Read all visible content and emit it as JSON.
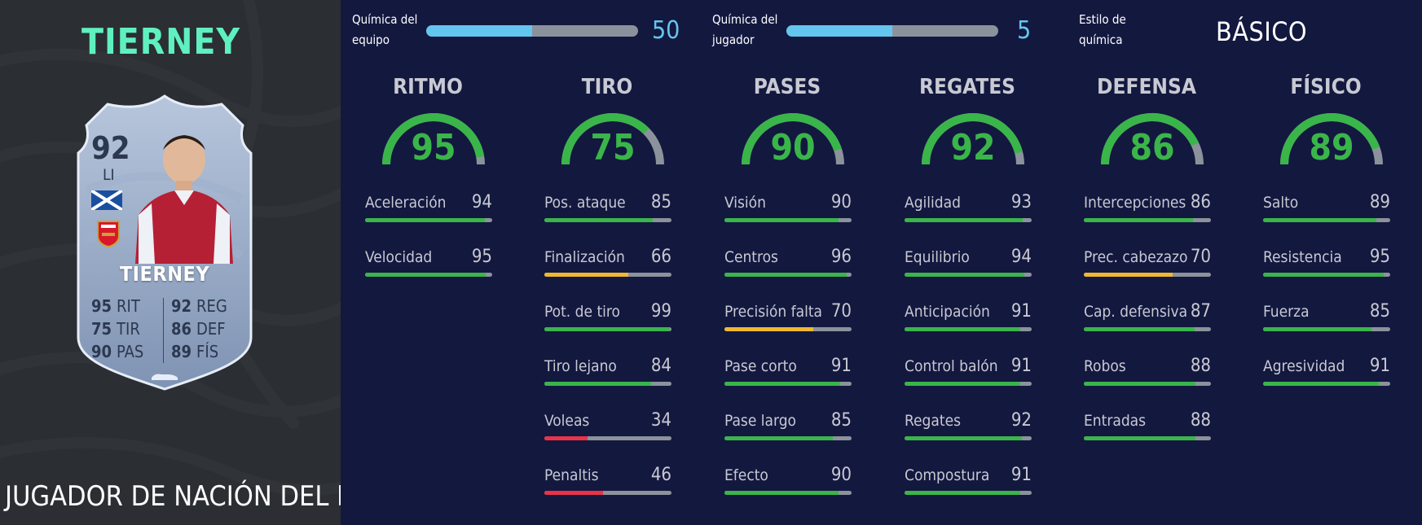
{
  "player": {
    "title_name": "TIERNEY",
    "card_type": "JUGADOR DE NACIÓN DEL FOF",
    "card": {
      "rating": "92",
      "position": "LI",
      "name": "TIERNEY",
      "flag_icon": "scotland-flag-icon",
      "club_icon": "arsenal-crest-icon",
      "stats": [
        {
          "value": "95",
          "label": "RIT"
        },
        {
          "value": "75",
          "label": "TIR"
        },
        {
          "value": "90",
          "label": "PAS"
        },
        {
          "value": "92",
          "label": "REG"
        },
        {
          "value": "86",
          "label": "DEF"
        },
        {
          "value": "89",
          "label": "FÍS"
        }
      ]
    }
  },
  "chemistry": {
    "team": {
      "label_line1": "Química del",
      "label_line2": "equipo",
      "value": "50",
      "fill": 0.5
    },
    "player": {
      "label_line1": "Química del",
      "label_line2": "jugador",
      "value": "5",
      "fill": 0.5
    },
    "style": {
      "label_line1": "Estilo de",
      "label_line2": "química",
      "value": "BÁSICO"
    }
  },
  "colors": {
    "green": "#3ab54a",
    "yellow": "#f0b730",
    "red": "#e8334a",
    "track": "#8c929b",
    "accent_blue": "#64c6ef",
    "title_mint": "#5ff0bf"
  },
  "columns": [
    {
      "title": "RITMO",
      "value": 95,
      "attributes": [
        {
          "name": "Aceleración",
          "value": 94
        },
        {
          "name": "Velocidad",
          "value": 95
        }
      ]
    },
    {
      "title": "TIRO",
      "value": 75,
      "attributes": [
        {
          "name": "Pos. ataque",
          "value": 85
        },
        {
          "name": "Finalización",
          "value": 66
        },
        {
          "name": "Pot. de tiro",
          "value": 99
        },
        {
          "name": "Tiro lejano",
          "value": 84
        },
        {
          "name": "Voleas",
          "value": 34
        },
        {
          "name": "Penaltis",
          "value": 46
        }
      ]
    },
    {
      "title": "PASES",
      "value": 90,
      "attributes": [
        {
          "name": "Visión",
          "value": 90
        },
        {
          "name": "Centros",
          "value": 96
        },
        {
          "name": "Precisión falta",
          "value": 70
        },
        {
          "name": "Pase corto",
          "value": 91
        },
        {
          "name": "Pase largo",
          "value": 85
        },
        {
          "name": "Efecto",
          "value": 90
        }
      ]
    },
    {
      "title": "REGATES",
      "value": 92,
      "attributes": [
        {
          "name": "Agilidad",
          "value": 93
        },
        {
          "name": "Equilibrio",
          "value": 94
        },
        {
          "name": "Anticipación",
          "value": 91
        },
        {
          "name": "Control balón",
          "value": 91
        },
        {
          "name": "Regates",
          "value": 92
        },
        {
          "name": "Compostura",
          "value": 91
        }
      ]
    },
    {
      "title": "DEFENSA",
      "value": 86,
      "attributes": [
        {
          "name": "Intercepciones",
          "value": 86
        },
        {
          "name": "Prec. cabezazo",
          "value": 70
        },
        {
          "name": "Cap. defensiva",
          "value": 87
        },
        {
          "name": "Robos",
          "value": 88
        },
        {
          "name": "Entradas",
          "value": 88
        }
      ]
    },
    {
      "title": "FÍSICO",
      "value": 89,
      "attributes": [
        {
          "name": "Salto",
          "value": 89
        },
        {
          "name": "Resistencia",
          "value": 95
        },
        {
          "name": "Fuerza",
          "value": 85
        },
        {
          "name": "Agresividad",
          "value": 91
        }
      ]
    }
  ]
}
